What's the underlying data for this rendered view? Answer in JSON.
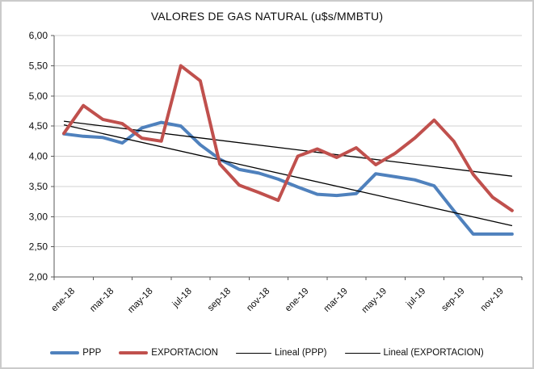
{
  "chart_data": {
    "type": "line",
    "title": "VALORES DE GAS NATURAL (u$s/MMBTU)",
    "categories": [
      "ene-18",
      "feb-18",
      "mar-18",
      "abr-18",
      "may-18",
      "jun-18",
      "jul-18",
      "ago-18",
      "sep-18",
      "oct-18",
      "nov-18",
      "dic-18",
      "ene-19",
      "feb-19",
      "mar-19",
      "abr-19",
      "may-19",
      "jun-19",
      "jul-19",
      "ago-19",
      "sep-19",
      "oct-19",
      "nov-19",
      "dic-19"
    ],
    "x_tick_labels": [
      "ene-18",
      "mar-18",
      "may-18",
      "jul-18",
      "sep-18",
      "nov-18",
      "ene-19",
      "mar-19",
      "may-19",
      "jul-19",
      "sep-19",
      "nov-19"
    ],
    "series": [
      {
        "name": "PPP",
        "color": "#4F81BD",
        "width": 4,
        "values": [
          4.37,
          4.33,
          4.31,
          4.22,
          4.47,
          4.56,
          4.5,
          4.19,
          3.95,
          3.78,
          3.72,
          3.62,
          3.49,
          3.37,
          3.35,
          3.38,
          3.71,
          3.66,
          3.61,
          3.51,
          3.1,
          2.71,
          2.71,
          2.71
        ]
      },
      {
        "name": "EXPORTACION",
        "color": "#C0504D",
        "width": 4,
        "values": [
          4.38,
          4.84,
          4.61,
          4.54,
          4.3,
          4.25,
          5.5,
          5.25,
          3.87,
          3.52,
          3.4,
          3.27,
          4.0,
          4.12,
          3.98,
          4.14,
          3.86,
          4.05,
          4.3,
          4.6,
          4.25,
          3.7,
          3.32,
          3.1
        ]
      }
    ],
    "trendlines": [
      {
        "name": "Lineal (PPP)",
        "color": "#000000",
        "start": 4.52,
        "end": 2.85
      },
      {
        "name": "Lineal (EXPORTACION)",
        "color": "#000000",
        "start": 4.58,
        "end": 3.67
      }
    ],
    "y_axis": {
      "min": 2.0,
      "max": 6.0,
      "step": 0.5,
      "tick_labels": [
        "6,00",
        "5,50",
        "5,00",
        "4,50",
        "4,00",
        "3,50",
        "3,00",
        "2,50",
        "2,00"
      ]
    },
    "grid": true,
    "legend_position": "bottom",
    "legend": [
      {
        "label": "PPP",
        "type": "thick",
        "color": "#4F81BD"
      },
      {
        "label": "EXPORTACION",
        "type": "thick",
        "color": "#C0504D"
      },
      {
        "label": "Lineal (PPP)",
        "type": "thin",
        "color": "#000000"
      },
      {
        "label": "Lineal (EXPORTACION)",
        "type": "thin",
        "color": "#000000"
      }
    ],
    "colors": {
      "gridline": "#d2d2d2",
      "axis": "#595959",
      "text": "#0d0d0d",
      "frame_border": "#cbcbcb"
    }
  }
}
